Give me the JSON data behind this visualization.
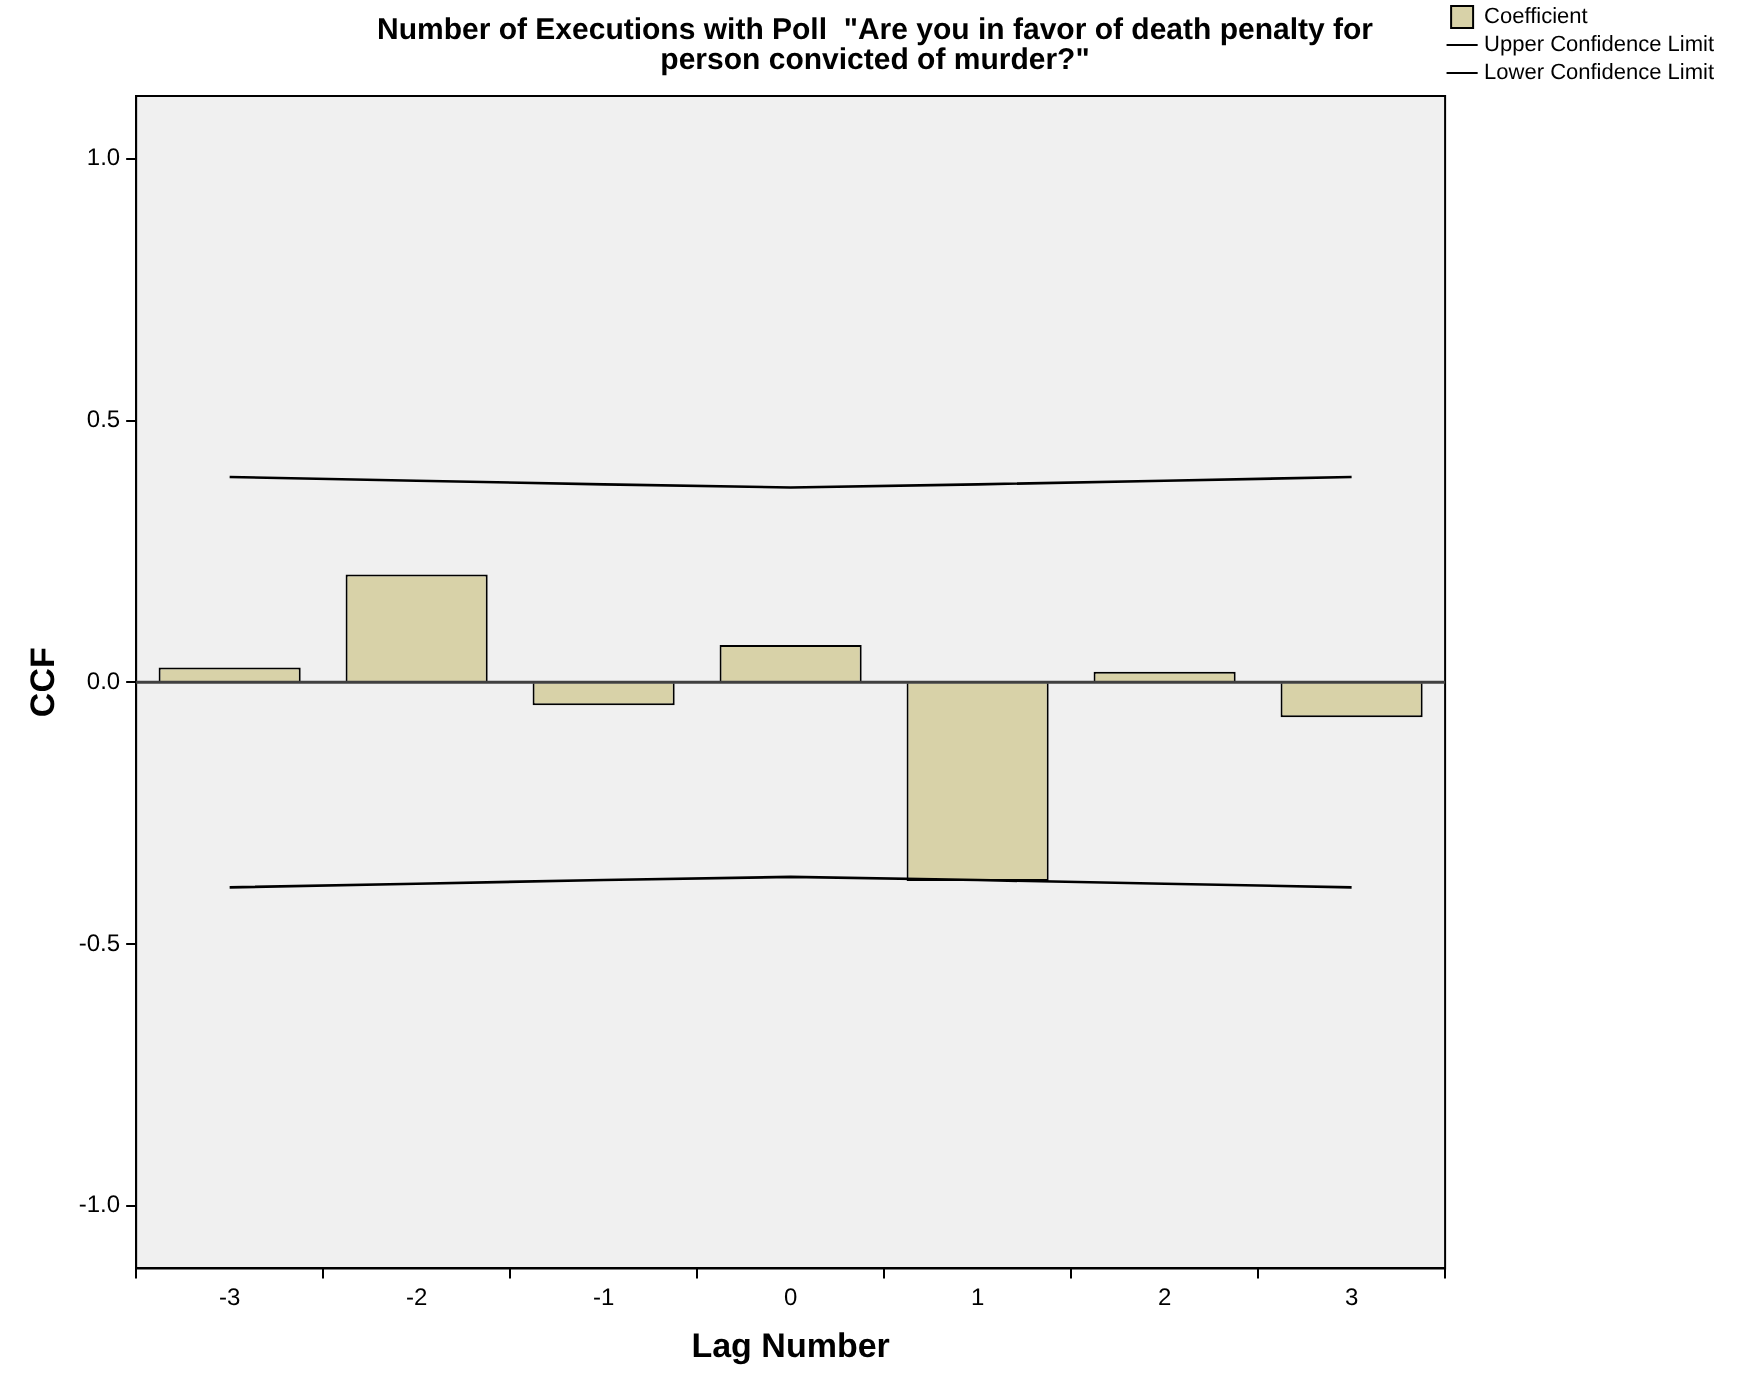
{
  "chart_data": {
    "type": "bar",
    "title": [
      "Number of Executions with Poll  \"Are you in favor of death penalty for",
      "person convicted of murder?\""
    ],
    "xlabel": "Lag Number",
    "ylabel": "CCF",
    "categories": [
      "-3",
      "-2",
      "-1",
      "0",
      "1",
      "2",
      "3"
    ],
    "series": [
      {
        "name": "Coefficient",
        "color": "#d8d2a8",
        "values": [
          0.028,
          0.206,
          -0.044,
          0.071,
          -0.38,
          0.02,
          -0.067
        ]
      },
      {
        "name": "Upper Confidence Limit",
        "type": "line",
        "color": "#000000",
        "values": [
          0.392,
          0.385,
          0.378,
          0.372,
          0.378,
          0.385,
          0.392
        ]
      },
      {
        "name": "Lower Confidence Limit",
        "type": "line",
        "color": "#000000",
        "values": [
          -0.392,
          -0.385,
          -0.378,
          -0.372,
          -0.378,
          -0.385,
          -0.392
        ]
      }
    ],
    "ylim": [
      -1.12,
      1.12
    ],
    "yticks": [
      {
        "value": -1,
        "label": "-1.0"
      },
      {
        "value": -0.5,
        "label": "-0.5"
      },
      {
        "value": 0,
        "label": "0.0"
      },
      {
        "value": 0.5,
        "label": "0.5"
      },
      {
        "value": 1,
        "label": "1.0"
      }
    ],
    "ref_lines": [
      {
        "axis": "y",
        "value": 0,
        "color": "#404040"
      }
    ],
    "grid": false,
    "legend": "top right",
    "marker": "none"
  }
}
